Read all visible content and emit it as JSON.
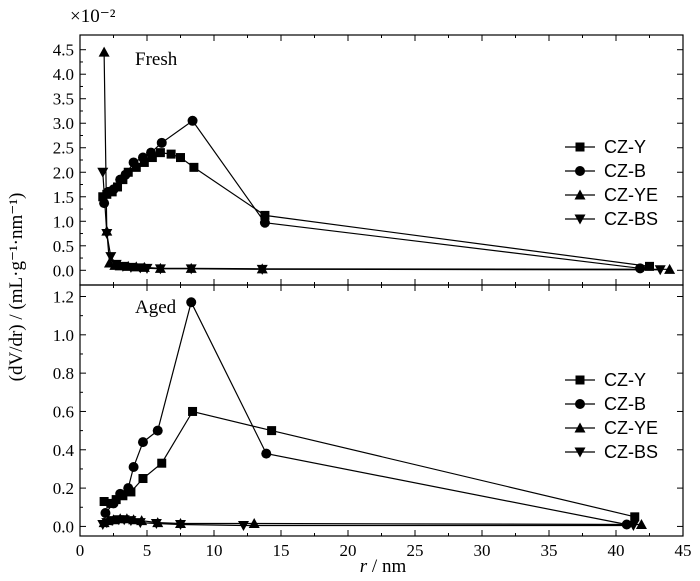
{
  "chart_data": [
    {
      "type": "line",
      "panel_label": "Fresh",
      "scale_label": "×10⁻²",
      "xlim": [
        0,
        45
      ],
      "ylim": [
        -0.3,
        4.8
      ],
      "yticks": [
        0.0,
        0.5,
        1.0,
        1.5,
        2.0,
        2.5,
        3.0,
        3.5,
        4.0,
        4.5
      ],
      "yticklabels": [
        "0.0",
        "0.5",
        "1.0",
        "1.5",
        "2.0",
        "2.5",
        "3.0",
        "3.5",
        "4.0",
        "4.5"
      ],
      "legend_position": "right",
      "series": [
        {
          "name": "CZ-Y",
          "marker": "square",
          "x": [
            1.7,
            2.0,
            2.4,
            2.8,
            3.2,
            3.6,
            4.2,
            4.8,
            5.4,
            6.0,
            6.8,
            7.5,
            8.5,
            13.8,
            42.5
          ],
          "y": [
            1.5,
            1.55,
            1.6,
            1.7,
            1.85,
            2.0,
            2.1,
            2.2,
            2.3,
            2.4,
            2.37,
            2.3,
            2.1,
            1.12,
            0.08
          ]
        },
        {
          "name": "CZ-B",
          "marker": "circle",
          "x": [
            1.8,
            2.1,
            2.5,
            3.0,
            3.4,
            4.0,
            4.7,
            5.3,
            6.1,
            8.4,
            13.8,
            41.8
          ],
          "y": [
            1.37,
            1.6,
            1.65,
            1.85,
            1.95,
            2.2,
            2.3,
            2.4,
            2.6,
            3.05,
            0.97,
            0.04
          ]
        },
        {
          "name": "CZ-YE",
          "marker": "triangle-up",
          "x": [
            1.8,
            2.0,
            2.2,
            2.6,
            3.0,
            3.6,
            4.2,
            4.8,
            6.0,
            8.3,
            13.6,
            44.0
          ],
          "y": [
            4.45,
            0.8,
            0.15,
            0.1,
            0.09,
            0.08,
            0.07,
            0.06,
            0.04,
            0.04,
            0.03,
            0.02
          ]
        },
        {
          "name": "CZ-BS",
          "marker": "triangle-down",
          "x": [
            1.7,
            2.0,
            2.3,
            2.7,
            3.2,
            3.8,
            4.5,
            5.0,
            6.0,
            8.3,
            13.6,
            43.3
          ],
          "y": [
            2.0,
            0.75,
            0.28,
            0.12,
            0.08,
            0.06,
            0.05,
            0.04,
            0.03,
            0.03,
            0.02,
            0.01
          ]
        }
      ]
    },
    {
      "type": "line",
      "panel_label": "Aged",
      "xlim": [
        0,
        45
      ],
      "ylim": [
        -0.05,
        1.26
      ],
      "yticks": [
        0.0,
        0.2,
        0.4,
        0.6,
        0.8,
        1.0,
        1.2
      ],
      "yticklabels": [
        "0.0",
        "0.2",
        "0.4",
        "0.6",
        "0.8",
        "1.0",
        "1.2"
      ],
      "xticks": [
        0,
        5,
        10,
        15,
        20,
        25,
        30,
        35,
        40,
        45
      ],
      "xticklabels": [
        "0",
        "5",
        "10",
        "15",
        "20",
        "25",
        "30",
        "35",
        "40",
        "45"
      ],
      "legend_position": "right",
      "series": [
        {
          "name": "CZ-Y",
          "marker": "square",
          "x": [
            1.8,
            2.3,
            2.7,
            3.2,
            3.8,
            4.7,
            6.1,
            8.4,
            14.3,
            41.4
          ],
          "y": [
            0.13,
            0.12,
            0.14,
            0.16,
            0.18,
            0.25,
            0.33,
            0.6,
            0.5,
            0.05
          ]
        },
        {
          "name": "CZ-B",
          "marker": "circle",
          "x": [
            1.9,
            2.5,
            3.0,
            3.6,
            4.0,
            4.7,
            5.8,
            8.3,
            13.9,
            40.8
          ],
          "y": [
            0.07,
            0.12,
            0.17,
            0.2,
            0.31,
            0.44,
            0.5,
            1.17,
            0.38,
            0.01
          ]
        },
        {
          "name": "CZ-YE",
          "marker": "triangle-up",
          "x": [
            1.8,
            2.1,
            2.5,
            3.0,
            3.5,
            4.0,
            4.6,
            5.8,
            7.5,
            13.0,
            41.9
          ],
          "y": [
            0.02,
            0.03,
            0.035,
            0.04,
            0.04,
            0.035,
            0.03,
            0.02,
            0.015,
            0.015,
            0.01
          ]
        },
        {
          "name": "CZ-BS",
          "marker": "triangle-down",
          "x": [
            1.7,
            2.0,
            2.4,
            2.9,
            3.3,
            3.8,
            4.5,
            5.7,
            7.5,
            12.2,
            41.3
          ],
          "y": [
            0.01,
            0.02,
            0.03,
            0.035,
            0.035,
            0.03,
            0.02,
            0.015,
            0.01,
            0.005,
            0.005
          ]
        }
      ]
    }
  ],
  "axes": {
    "xlabel_var": "r",
    "xlabel_rest": " / nm",
    "ylabel": "(dV/dr) / (mL·g⁻¹·nm⁻¹)"
  }
}
